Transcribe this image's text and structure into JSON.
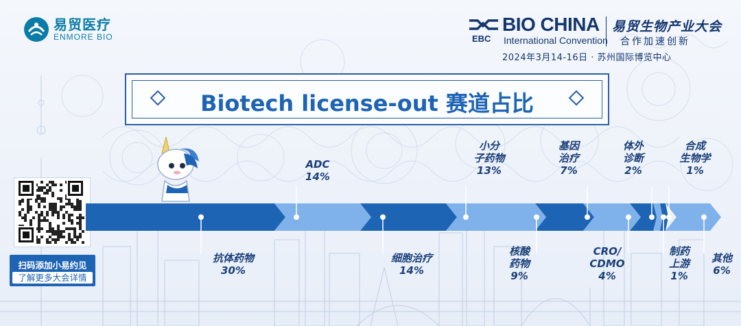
{
  "brand": {
    "name_zh": "易贸医疗",
    "name_en": "ENMORE BIO",
    "event_ebc": "EBC",
    "event_title": "BIO CHINA",
    "event_subtitle": "International Convention",
    "event_cn": "易贸生物产业大会",
    "event_cn2": "合作加速创新",
    "event_date": "2024年3月14-16日 · 苏州国际博览中心"
  },
  "qr": {
    "cta_line1": "扫码添加小易约见",
    "cta_line2": "了解更多大会详情"
  },
  "colors": {
    "dark_blue": "#1e64b4",
    "light_blue": "#7fb2ea",
    "label": "#1a3f78"
  },
  "chart_data": {
    "type": "bar",
    "title": "Biotech license-out 赛道占比",
    "orientation": "horizontal-stacked",
    "categories": [
      {
        "label": "抗体药物",
        "value": 30,
        "display": "30%",
        "position": "below"
      },
      {
        "label": "ADC",
        "value": 14,
        "display": "14%",
        "position": "above"
      },
      {
        "label": "细胞治疗",
        "value": 14,
        "display": "14%",
        "position": "below"
      },
      {
        "label": "小分子药物",
        "value": 13,
        "display": "13%",
        "position": "above"
      },
      {
        "label": "核酸药物",
        "value": 9,
        "display": "9%",
        "position": "below"
      },
      {
        "label": "基因治疗",
        "value": 7,
        "display": "7%",
        "position": "above"
      },
      {
        "label": "CRO/CDMO",
        "value": 4,
        "display": "4%",
        "position": "below"
      },
      {
        "label": "体外诊断",
        "value": 2,
        "display": "2%",
        "position": "above"
      },
      {
        "label": "制药上游",
        "value": 1,
        "display": "1%",
        "position": "below"
      },
      {
        "label": "合成生物学",
        "value": 1,
        "display": "1%",
        "position": "above"
      },
      {
        "label": "其他",
        "value": 6,
        "display": "6%",
        "position": "below"
      }
    ]
  }
}
